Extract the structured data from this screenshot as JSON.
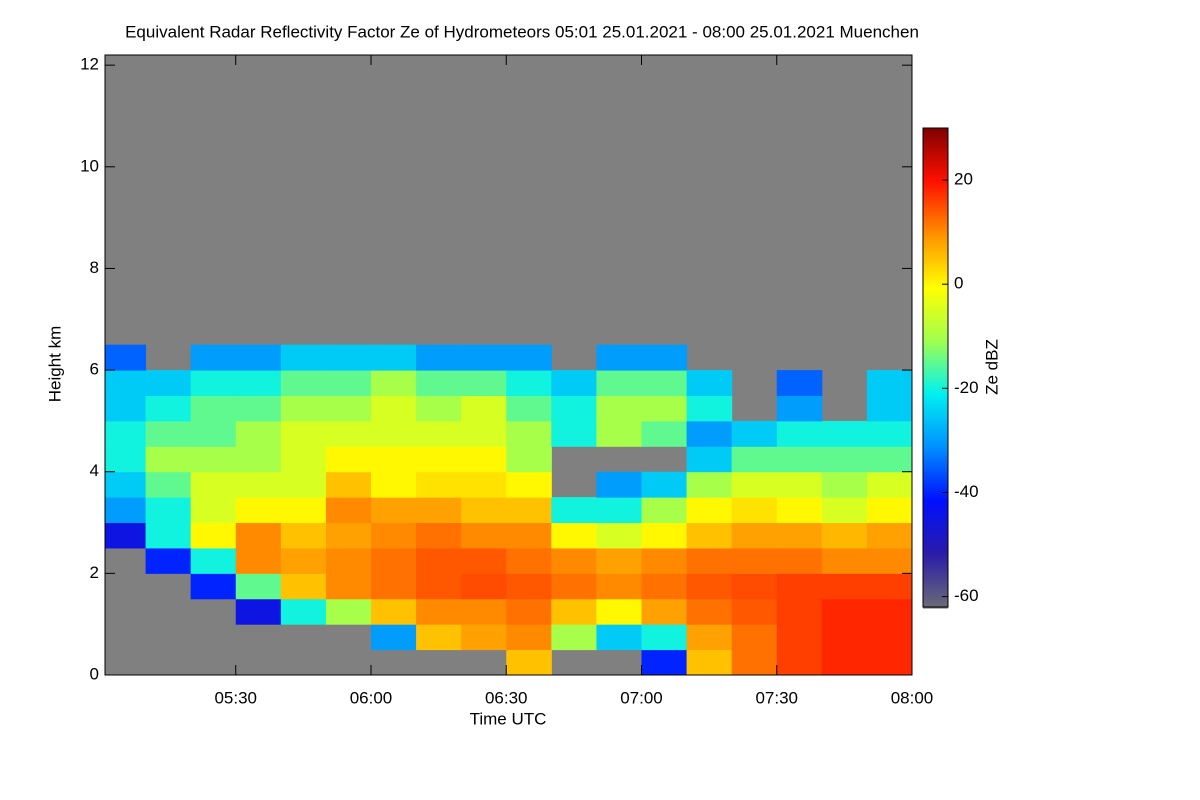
{
  "chart_data": {
    "type": "heatmap",
    "title": "Equivalent Radar Reflectivity Factor Ze of Hydrometeors   05:01 25.01.2021 - 08:00 25.01.2021 Muenchen",
    "x_label": "Time UTC",
    "y_label": "Height km",
    "colorbar_label": "Ze dBZ",
    "xlim": [
      301,
      480
    ],
    "ylim": [
      0,
      12.2
    ],
    "xticks": [
      {
        "value": 330,
        "label": "05:30"
      },
      {
        "value": 360,
        "label": "06:00"
      },
      {
        "value": 390,
        "label": "06:30"
      },
      {
        "value": 420,
        "label": "07:00"
      },
      {
        "value": 450,
        "label": "07:30"
      },
      {
        "value": 480,
        "label": "08:00"
      }
    ],
    "yticks": [
      0,
      2,
      4,
      6,
      8,
      10,
      12
    ],
    "clim": [
      -62,
      30
    ],
    "cticks": [
      20,
      0,
      -20,
      -40,
      -60
    ],
    "colormap": [
      "#6a6a78",
      "#2a1ca8",
      "#0010ff",
      "#0090ff",
      "#00f0f0",
      "#a0ff50",
      "#ffff00",
      "#ff9000",
      "#ff1000",
      "#800000"
    ],
    "background": "#808080",
    "xbins": [
      300,
      310,
      320,
      330,
      340,
      350,
      360,
      370,
      380,
      390,
      400,
      410,
      420,
      430,
      440,
      450,
      460,
      470,
      480
    ],
    "ybins": [
      0,
      0.5,
      1,
      1.5,
      2,
      2.5,
      3,
      3.5,
      4,
      4.5,
      5,
      5.5,
      6,
      6.5
    ],
    "z": [
      [
        null,
        null,
        null,
        null,
        null,
        null,
        null,
        null,
        null,
        5,
        null,
        null,
        -40,
        5,
        12,
        16,
        18,
        18
      ],
      [
        null,
        null,
        null,
        null,
        null,
        null,
        -30,
        5,
        8,
        10,
        -10,
        -25,
        -20,
        8,
        12,
        16,
        18,
        18
      ],
      [
        null,
        null,
        null,
        -45,
        -20,
        -10,
        5,
        10,
        10,
        12,
        5,
        0,
        8,
        12,
        14,
        16,
        18,
        18
      ],
      [
        null,
        null,
        -40,
        -15,
        5,
        10,
        12,
        14,
        15,
        14,
        12,
        10,
        12,
        14,
        15,
        16,
        16,
        16
      ],
      [
        null,
        -40,
        -20,
        10,
        8,
        10,
        12,
        14,
        14,
        12,
        10,
        8,
        10,
        12,
        12,
        12,
        10,
        10
      ],
      [
        -45,
        -20,
        0,
        10,
        5,
        8,
        10,
        12,
        10,
        10,
        0,
        -5,
        0,
        5,
        8,
        8,
        6,
        8
      ],
      [
        -30,
        -20,
        -5,
        0,
        0,
        10,
        8,
        8,
        5,
        5,
        -20,
        -20,
        -10,
        0,
        2,
        0,
        -5,
        0
      ],
      [
        -25,
        -15,
        -5,
        -5,
        -5,
        5,
        0,
        2,
        2,
        0,
        null,
        -30,
        -25,
        -10,
        -5,
        -5,
        -10,
        -5
      ],
      [
        -20,
        -10,
        -10,
        -10,
        -5,
        0,
        0,
        0,
        0,
        -10,
        null,
        null,
        null,
        -25,
        -15,
        -15,
        -15,
        -15
      ],
      [
        -20,
        -15,
        -15,
        -10,
        -5,
        -5,
        -5,
        -5,
        -5,
        -10,
        -20,
        -10,
        -15,
        -30,
        -25,
        -20,
        -20,
        -20
      ],
      [
        -25,
        -20,
        -15,
        -15,
        -10,
        -10,
        -5,
        -10,
        -5,
        -15,
        -20,
        -10,
        -10,
        -20,
        null,
        -30,
        null,
        -25
      ],
      [
        -25,
        -25,
        -20,
        -20,
        -15,
        -15,
        -10,
        -15,
        -15,
        -20,
        -25,
        -15,
        -15,
        -25,
        null,
        -35,
        null,
        -25
      ],
      [
        -35,
        null,
        -30,
        -30,
        -25,
        -25,
        -25,
        -30,
        -30,
        -30,
        null,
        -30,
        -30,
        null,
        null,
        null,
        null,
        null
      ]
    ]
  }
}
